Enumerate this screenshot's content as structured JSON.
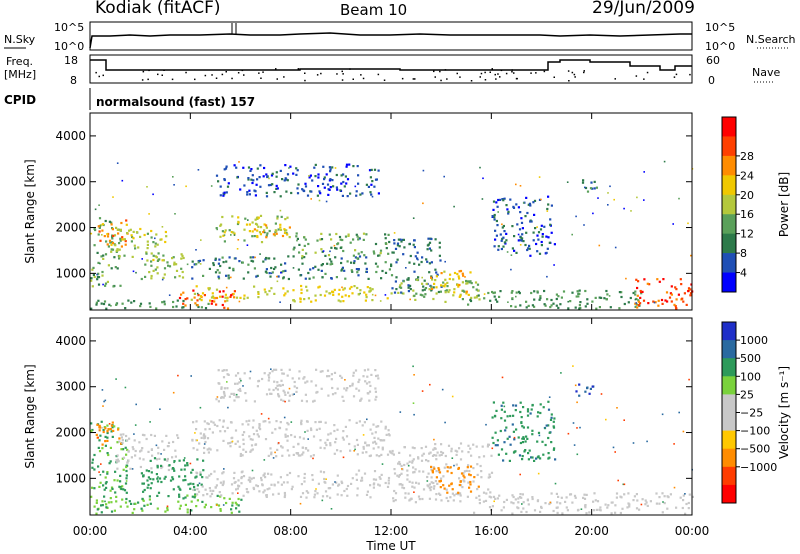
{
  "header": {
    "station": "Kodiak (fitACF)",
    "beam": "Beam 10",
    "date": "29/Jun/2009"
  },
  "noise_panel": {
    "left_label": "N.Sky",
    "left_ticks": [
      "10^5",
      "10^0"
    ],
    "right_ticks": [
      "10^5",
      "10^0"
    ],
    "right_label": "N.Search"
  },
  "freq_panel": {
    "left_label_1": "Freq.",
    "left_label_2": "[MHz]",
    "left_ticks": [
      "18",
      "8"
    ],
    "right_ticks": [
      "60",
      "0"
    ],
    "right_label": "Nave"
  },
  "cpid": {
    "label": "CPID",
    "program": "normalsound (fast) 157"
  },
  "chart_data": [
    {
      "type": "heatmap",
      "panel": "power",
      "ylabel": "Slant Range [km]",
      "xlabel": "Time UT",
      "x_ticks": [
        "00:00",
        "04:00",
        "08:00",
        "12:00",
        "16:00",
        "20:00",
        "00:00"
      ],
      "y_ticks": [
        1000,
        2000,
        3000,
        4000
      ],
      "ylim": [
        200,
        4500
      ],
      "colorbar": {
        "label": "Power [dB]",
        "ticks": [
          "4",
          "8",
          "12",
          "16",
          "20",
          "24",
          "28"
        ],
        "colors": [
          "#0000ff",
          "#1f4fb5",
          "#2d7a4a",
          "#5aa05a",
          "#b4c83c",
          "#f0c800",
          "#ff8c00",
          "#ff4000",
          "#ff0000"
        ]
      },
      "regions": [
        {
          "t": [
            0.0,
            1.2
          ],
          "r": [
            700,
            2300
          ],
          "v": 14
        },
        {
          "t": [
            0.3,
            1.5
          ],
          "r": [
            1600,
            2200
          ],
          "v": 26
        },
        {
          "t": [
            1.0,
            3.0
          ],
          "r": [
            1300,
            2000
          ],
          "v": 18
        },
        {
          "t": [
            2.0,
            3.8
          ],
          "r": [
            900,
            1500
          ],
          "v": 16
        },
        {
          "t": [
            0.0,
            5.0
          ],
          "r": [
            250,
            450
          ],
          "v": 12
        },
        {
          "t": [
            3.5,
            5.8
          ],
          "r": [
            250,
            650
          ],
          "v": 30
        },
        {
          "t": [
            5.0,
            8.0
          ],
          "r": [
            1700,
            2300
          ],
          "v": 18
        },
        {
          "t": [
            6.5,
            8.0
          ],
          "r": [
            1800,
            2100
          ],
          "v": 24
        },
        {
          "t": [
            4.0,
            12.0
          ],
          "r": [
            900,
            1400
          ],
          "v": 10
        },
        {
          "t": [
            8.0,
            12.0
          ],
          "r": [
            1400,
            1900
          ],
          "v": 14
        },
        {
          "t": [
            4.0,
            12.0
          ],
          "r": [
            400,
            750
          ],
          "v": 20
        },
        {
          "t": [
            12.0,
            14.0
          ],
          "r": [
            600,
            1800
          ],
          "v": 8
        },
        {
          "t": [
            12.0,
            15.5
          ],
          "r": [
            400,
            900
          ],
          "v": 16
        },
        {
          "t": [
            13.5,
            15.2
          ],
          "r": [
            500,
            1100
          ],
          "v": 22
        },
        {
          "t": [
            15.0,
            22.0
          ],
          "r": [
            250,
            650
          ],
          "v": 12
        },
        {
          "t": [
            16.0,
            18.5
          ],
          "r": [
            1400,
            2700
          ],
          "v": 6
        },
        {
          "t": [
            19.3,
            20.2
          ],
          "r": [
            2800,
            3100
          ],
          "v": 10
        },
        {
          "t": [
            21.5,
            24.0
          ],
          "r": [
            250,
            900
          ],
          "v": 30
        },
        {
          "t": [
            5.0,
            11.5
          ],
          "r": [
            2700,
            3400
          ],
          "v": 6
        }
      ]
    },
    {
      "type": "heatmap",
      "panel": "velocity",
      "ylabel": "Slant Range [km]",
      "xlabel": "Time UT",
      "x_ticks": [
        "00:00",
        "04:00",
        "08:00",
        "12:00",
        "16:00",
        "20:00",
        "00:00"
      ],
      "y_ticks": [
        1000,
        2000,
        3000,
        4000
      ],
      "ylim": [
        200,
        4500
      ],
      "colorbar": {
        "label": "Velocity [m s⁻¹]",
        "ticks": [
          "1000",
          "500",
          "100",
          "25",
          "−25",
          "−100",
          "−500",
          "−1000"
        ],
        "colors": [
          "#1f2fc8",
          "#2a6aa0",
          "#2d9a5a",
          "#7ad23c",
          "#c8c8c8",
          "#c8c8c8",
          "#ffc800",
          "#ff8c00",
          "#ff3c00",
          "#ff0000"
        ]
      },
      "regions": [
        {
          "t": [
            0.0,
            1.5
          ],
          "r": [
            700,
            2300
          ],
          "v": 120
        },
        {
          "t": [
            0.2,
            1.2
          ],
          "r": [
            1700,
            2300
          ],
          "v": -300
        },
        {
          "t": [
            1.0,
            3.5
          ],
          "r": [
            1200,
            2000
          ],
          "v": 0
        },
        {
          "t": [
            2.0,
            4.5
          ],
          "r": [
            600,
            1500
          ],
          "v": 300
        },
        {
          "t": [
            0.0,
            6.0
          ],
          "r": [
            250,
            650
          ],
          "v": 80
        },
        {
          "t": [
            4.0,
            12.0
          ],
          "r": [
            1500,
            2300
          ],
          "v": 0
        },
        {
          "t": [
            4.0,
            12.0
          ],
          "r": [
            600,
            1200
          ],
          "v": 0
        },
        {
          "t": [
            12.0,
            16.0
          ],
          "r": [
            500,
            1800
          ],
          "v": 0
        },
        {
          "t": [
            13.5,
            15.5
          ],
          "r": [
            700,
            1300
          ],
          "v": -300
        },
        {
          "t": [
            15.0,
            24.0
          ],
          "r": [
            250,
            700
          ],
          "v": 0
        },
        {
          "t": [
            16.0,
            18.5
          ],
          "r": [
            1400,
            2700
          ],
          "v": 400
        },
        {
          "t": [
            19.3,
            20.2
          ],
          "r": [
            2800,
            3100
          ],
          "v": 800
        },
        {
          "t": [
            5.0,
            11.5
          ],
          "r": [
            2700,
            3400
          ],
          "v": 0
        }
      ]
    }
  ]
}
